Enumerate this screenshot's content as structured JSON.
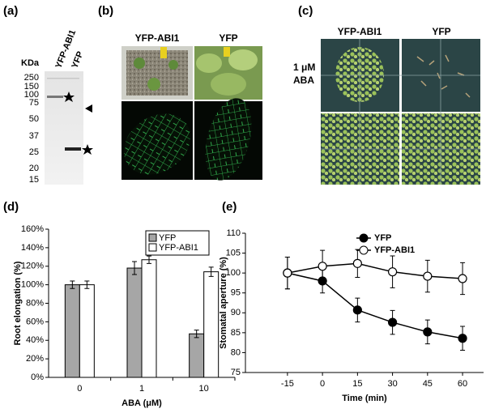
{
  "panel_labels": [
    "(a)",
    "(b)",
    "(c)",
    "(d)",
    "(e)"
  ],
  "blot": {
    "unit": "KDa",
    "markers": [
      "250",
      "150",
      "100",
      "75",
      "50",
      "37",
      "25",
      "20",
      "15"
    ],
    "lanes": [
      "YFP-ABI1",
      "YFP"
    ]
  },
  "photos_b": {
    "columns": [
      "YFP-ABI1",
      "YFP"
    ]
  },
  "photos_c": {
    "columns": [
      "YFP-ABI1",
      "YFP"
    ],
    "row_label": [
      "1 μM",
      "ABA"
    ]
  },
  "chart_data": [
    {
      "type": "bar",
      "categories": [
        "0",
        "1",
        "10"
      ],
      "series": [
        {
          "name": "YFP",
          "color": "#a6a6a6",
          "values": [
            100,
            118,
            47
          ],
          "errors": [
            4,
            7,
            4
          ]
        },
        {
          "name": "YFP-ABI1",
          "color": "#ffffff",
          "values": [
            100,
            127,
            114
          ],
          "errors": [
            4,
            4,
            5
          ]
        }
      ],
      "ylim": [
        0,
        160
      ],
      "yticks": [
        {
          "value": 0,
          "label": "0%"
        },
        {
          "value": 20,
          "label": "20%"
        },
        {
          "value": 40,
          "label": "40%"
        },
        {
          "value": 60,
          "label": "60%"
        },
        {
          "value": 80,
          "label": "80%"
        },
        {
          "value": 100,
          "label": "100%"
        },
        {
          "value": 120,
          "label": "120%"
        },
        {
          "value": 140,
          "label": "140%"
        },
        {
          "value": 160,
          "label": "160%"
        }
      ],
      "y_label": "Root elongation (%)",
      "x_label": "ABA (μM)",
      "legend": "top"
    },
    {
      "type": "line",
      "x": [
        -15,
        0,
        15,
        30,
        45,
        60
      ],
      "xlim": [
        -33,
        69
      ],
      "xticks": [
        -15,
        0,
        15,
        30,
        45,
        60
      ],
      "series": [
        {
          "name": "YFP",
          "color": "#000000",
          "marker": "filled",
          "values": [
            100,
            98,
            90.7,
            87.6,
            85.2,
            83.6
          ],
          "errors": [
            4,
            3,
            3,
            3,
            3,
            3
          ]
        },
        {
          "name": "YFP-ABI1",
          "color": "#000000",
          "marker": "open",
          "values": [
            100,
            101.7,
            102.4,
            100.3,
            99.2,
            98.6
          ],
          "errors": [
            4,
            4,
            3.5,
            4,
            4,
            4
          ]
        }
      ],
      "ylim": [
        75,
        110
      ],
      "yticks": [
        75,
        80,
        85,
        90,
        95,
        100,
        105,
        110
      ],
      "y_label": "Stomatal aperture (%)",
      "x_label": "Time (min)",
      "legend": "top"
    }
  ]
}
